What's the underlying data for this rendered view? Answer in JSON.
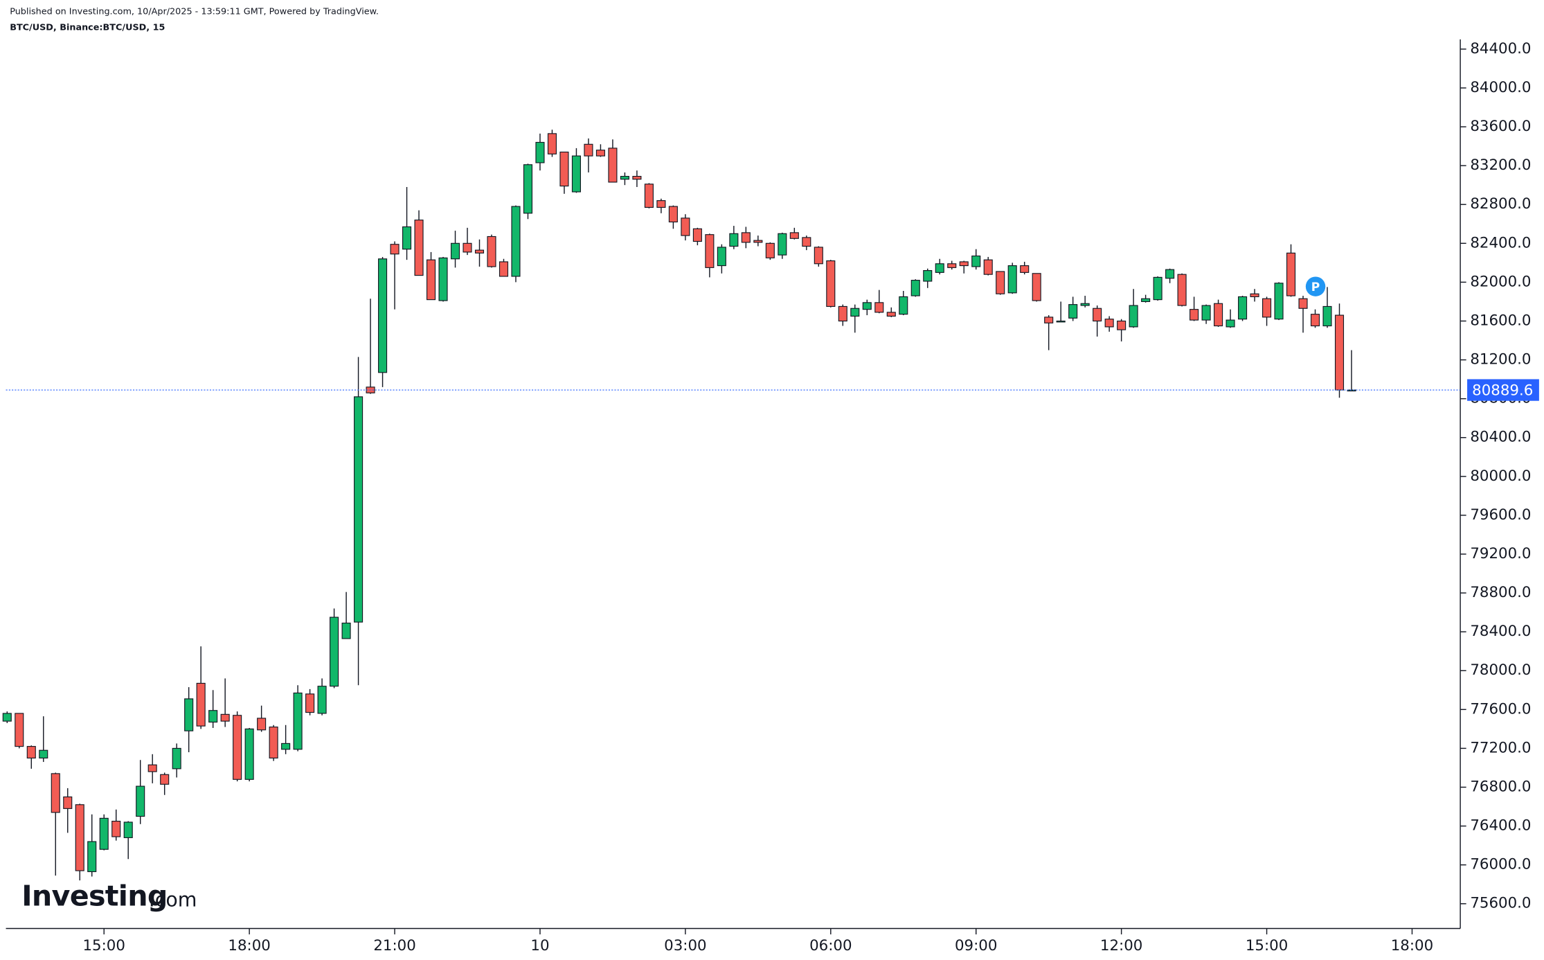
{
  "chart_data": {
    "type": "candlestick",
    "title": "Published on Investing.com, 10/Apr/2025 - 13:59:11 GMT, Powered by TradingView.",
    "subtitle": "BTC/USD, Binance:BTC/USD, 15",
    "logo": "Investing",
    "logo_suffix": ".com",
    "marker_label": "P",
    "up_color": "#12b76a",
    "down_color": "#f25c54",
    "last_price": 80889.6,
    "open": [
      77480,
      77560,
      77220,
      77100,
      76940,
      76700,
      76620,
      75930,
      76160,
      76450,
      76280,
      76500,
      77030,
      76930,
      76990,
      77380,
      77870,
      77470,
      77550,
      77540,
      76880,
      77510,
      77420,
      77190,
      77190,
      77760,
      77560,
      77840,
      78330,
      78500,
      80920,
      81070,
      82390,
      82340,
      82640,
      82230,
      81810,
      82240,
      82400,
      82330,
      82470,
      82210,
      82060,
      82710,
      83230,
      83530,
      83340,
      82930,
      83420,
      83360,
      83380,
      83060,
      83090,
      83010,
      82840,
      82780,
      82660,
      82550,
      82490,
      82170,
      82370,
      82510,
      82430,
      82400,
      82280,
      82510,
      82460,
      82360,
      82220,
      81750,
      81650,
      81720,
      81790,
      81690,
      81670,
      81860,
      82010,
      82100,
      82190,
      82210,
      82160,
      82230,
      82110,
      81890,
      82170,
      82090,
      81640,
      81590,
      81630,
      81760,
      81730,
      81620,
      81600,
      81540,
      81800,
      81820,
      82040,
      82080,
      81720,
      81610,
      81780,
      81540,
      81620,
      81880,
      81830,
      81620,
      82300,
      81830,
      81670,
      81550,
      81660,
      80890
    ],
    "high": [
      77580,
      77560,
      77230,
      77530,
      76950,
      76790,
      76630,
      76520,
      76520,
      76570,
      76450,
      77080,
      77140,
      76950,
      77250,
      77830,
      78250,
      77800,
      77920,
      77580,
      77410,
      77640,
      77440,
      77440,
      77850,
      77810,
      77920,
      78640,
      78810,
      81230,
      81830,
      82260,
      82420,
      82980,
      82740,
      82310,
      82260,
      82530,
      82560,
      82440,
      82490,
      82240,
      82790,
      83220,
      83530,
      83570,
      83340,
      83380,
      83480,
      83420,
      83470,
      83130,
      83150,
      83020,
      82860,
      82790,
      82700,
      82560,
      82500,
      82390,
      82580,
      82570,
      82480,
      82410,
      82510,
      82560,
      82480,
      82370,
      82230,
      81770,
      81770,
      81820,
      81920,
      81740,
      81910,
      82030,
      82140,
      82240,
      82220,
      82220,
      82340,
      82260,
      82110,
      82200,
      82210,
      82090,
      81660,
      81800,
      81850,
      81860,
      81760,
      81650,
      81620,
      81930,
      81870,
      82060,
      82140,
      82090,
      81850,
      81770,
      81820,
      81720,
      81860,
      81930,
      81850,
      82000,
      82390,
      81860,
      81720,
      81950,
      81780,
      81300
    ],
    "low": [
      77460,
      77200,
      76990,
      77060,
      75890,
      76330,
      75840,
      75880,
      76150,
      76250,
      76060,
      76420,
      76840,
      76720,
      76900,
      77160,
      77400,
      77410,
      77420,
      76860,
      76860,
      77370,
      77070,
      77140,
      77170,
      77540,
      77540,
      77820,
      78340,
      77850,
      80850,
      80920,
      81720,
      82230,
      82070,
      81820,
      81800,
      82150,
      82280,
      82160,
      82150,
      82060,
      82000,
      82650,
      83150,
      83290,
      82910,
      82920,
      83130,
      83290,
      83030,
      83000,
      82980,
      82760,
      82710,
      82550,
      82430,
      82380,
      82050,
      82090,
      82340,
      82350,
      82370,
      82230,
      82240,
      82440,
      82330,
      82160,
      81740,
      81550,
      81480,
      81660,
      81680,
      81640,
      81660,
      81850,
      81940,
      82080,
      82130,
      82090,
      82130,
      82070,
      81870,
      81880,
      82080,
      81800,
      81300,
      81590,
      81600,
      81740,
      81440,
      81490,
      81390,
      81530,
      81790,
      81810,
      81990,
      81750,
      81600,
      81570,
      81540,
      81530,
      81600,
      81800,
      81550,
      81610,
      81850,
      81480,
      81530,
      81530,
      80810,
      80880
    ],
    "close": [
      77560,
      77220,
      77100,
      77180,
      76540,
      76580,
      75940,
      76240,
      76480,
      76290,
      76440,
      76810,
      76960,
      76830,
      77200,
      77710,
      77430,
      77590,
      77480,
      76880,
      77400,
      77390,
      77100,
      77250,
      77770,
      77570,
      77840,
      78550,
      78490,
      80820,
      80860,
      82240,
      82290,
      82570,
      82070,
      81820,
      82250,
      82400,
      82310,
      82300,
      82160,
      82060,
      82780,
      83210,
      83440,
      83320,
      82990,
      83300,
      83300,
      83300,
      83030,
      83090,
      83060,
      82770,
      82770,
      82620,
      82480,
      82420,
      82150,
      82360,
      82500,
      82410,
      82410,
      82250,
      82500,
      82450,
      82370,
      82190,
      81750,
      81600,
      81730,
      81790,
      81690,
      81650,
      81850,
      82020,
      82120,
      82190,
      82150,
      82170,
      82270,
      82080,
      81880,
      82170,
      82100,
      81810,
      81580,
      81600,
      81770,
      81780,
      81600,
      81540,
      81510,
      81760,
      81830,
      82050,
      82130,
      81760,
      81610,
      81760,
      81550,
      81610,
      81850,
      81850,
      81640,
      81990,
      81860,
      81730,
      81550,
      81750,
      80890,
      80890
    ],
    "xlim": [
      -0.1,
      119.9
    ],
    "xticks": [
      {
        "value": 8,
        "label": "15:00"
      },
      {
        "value": 20,
        "label": "18:00"
      },
      {
        "value": 32,
        "label": "21:00"
      },
      {
        "value": 44,
        "label": "10"
      },
      {
        "value": 56,
        "label": "03:00"
      },
      {
        "value": 68,
        "label": "06:00"
      },
      {
        "value": 80,
        "label": "09:00"
      },
      {
        "value": 92,
        "label": "12:00"
      },
      {
        "value": 104,
        "label": "15:00"
      },
      {
        "value": 116,
        "label": "18:00"
      }
    ],
    "ylim": [
      75345,
      84500
    ],
    "yticks": [
      {
        "value": 75600,
        "label": "75600.0"
      },
      {
        "value": 76000,
        "label": "76000.0"
      },
      {
        "value": 76400,
        "label": "76400.0"
      },
      {
        "value": 76800,
        "label": "76800.0"
      },
      {
        "value": 77200,
        "label": "77200.0"
      },
      {
        "value": 77600,
        "label": "77600.0"
      },
      {
        "value": 78000,
        "label": "78000.0"
      },
      {
        "value": 78400,
        "label": "78400.0"
      },
      {
        "value": 78800,
        "label": "78800.0"
      },
      {
        "value": 79200,
        "label": "79200.0"
      },
      {
        "value": 79600,
        "label": "79600.0"
      },
      {
        "value": 80000,
        "label": "80000.0"
      },
      {
        "value": 80400,
        "label": "80400.0"
      },
      {
        "value": 80800,
        "label": "80800.0"
      },
      {
        "value": 81200,
        "label": "81200.0"
      },
      {
        "value": 81600,
        "label": "81600.0"
      },
      {
        "value": 82000,
        "label": "82000.0"
      },
      {
        "value": 82400,
        "label": "82400.0"
      },
      {
        "value": 82800,
        "label": "82800.0"
      },
      {
        "value": 83200,
        "label": "83200.0"
      },
      {
        "value": 83600,
        "label": "83600.0"
      },
      {
        "value": 84000,
        "label": "84000.0"
      },
      {
        "value": 84400,
        "label": "84400.0"
      }
    ]
  }
}
